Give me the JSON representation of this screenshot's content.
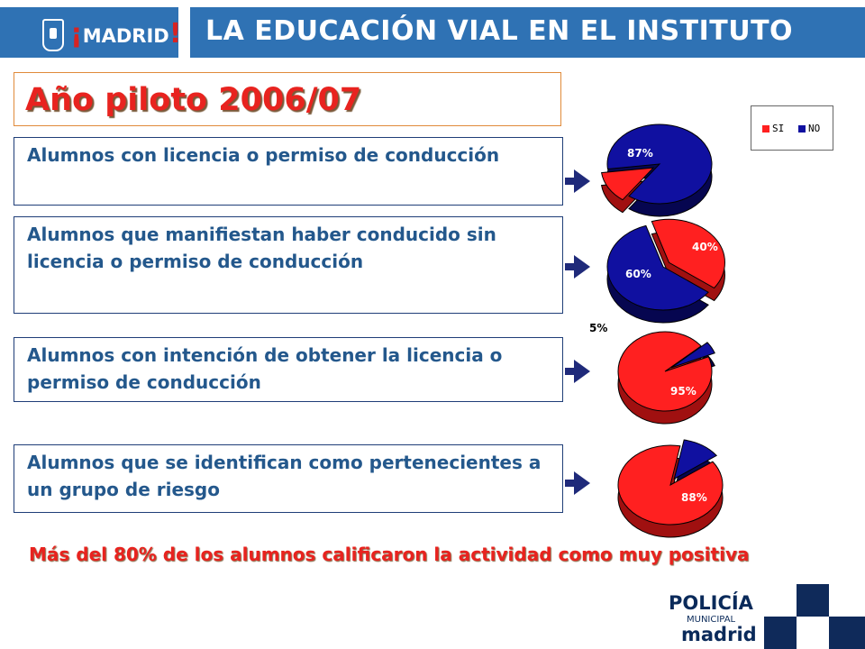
{
  "header": {
    "city_logo_text": "MADRID",
    "title": "LA EDUCACIÓN VIAL EN EL INSTITUTO"
  },
  "subtitle": "Año piloto 2006/07",
  "stats": [
    {
      "label": "Alumnos con licencia o permiso de conducción"
    },
    {
      "label": "Alumnos que manifiestan haber conducido sin licencia o permiso de conducción"
    },
    {
      "label": "Alumnos con intención de obtener la licencia o permiso de conducción"
    },
    {
      "label": "Alumnos que se identifican como pertenecientes a un grupo de riesgo"
    }
  ],
  "legend": {
    "si": "SI",
    "no": "NO"
  },
  "colors": {
    "si": "#ff2020",
    "no": "#1010a0",
    "header": "#2f72b4",
    "stat_text": "#24588c",
    "accent_red": "#e8231f"
  },
  "chart_data": [
    {
      "type": "pie",
      "labels": [
        "SI",
        "NO"
      ],
      "values": [
        13,
        87
      ],
      "value_labels": [
        "13%",
        "87%"
      ]
    },
    {
      "type": "pie",
      "labels": [
        "SI",
        "NO"
      ],
      "values": [
        40,
        60
      ],
      "value_labels": [
        "40%",
        "60%"
      ]
    },
    {
      "type": "pie",
      "labels": [
        "SI",
        "NO"
      ],
      "values": [
        95,
        5
      ],
      "value_labels": [
        "95%",
        "5%"
      ]
    },
    {
      "type": "pie",
      "labels": [
        "SI",
        "NO"
      ],
      "values": [
        88,
        12
      ],
      "value_labels": [
        "88%",
        "12%"
      ]
    }
  ],
  "conclusion": "Más del 80% de los alumnos calificaron la actividad como muy positiva",
  "footer": {
    "line1": "POLICÍA",
    "line2": "MUNICIPAL",
    "line3": "madrid"
  }
}
